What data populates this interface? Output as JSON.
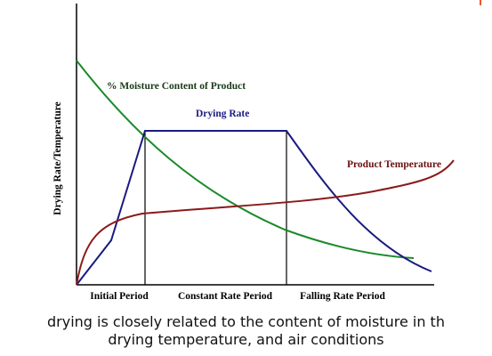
{
  "diagram": {
    "labels": {
      "moisture": "% Moisture Content of Product",
      "drying_rate": "Drying Rate",
      "temperature": "Product Temperature",
      "y_axis": "Drying Rate/Temperature",
      "periods": [
        "Initial Period",
        "Constant Rate Period",
        "Falling Rate Period"
      ]
    },
    "caption": [
      "drying is closely related to the content of moisture in th",
      "drying temperature, and air conditions"
    ]
  }
}
